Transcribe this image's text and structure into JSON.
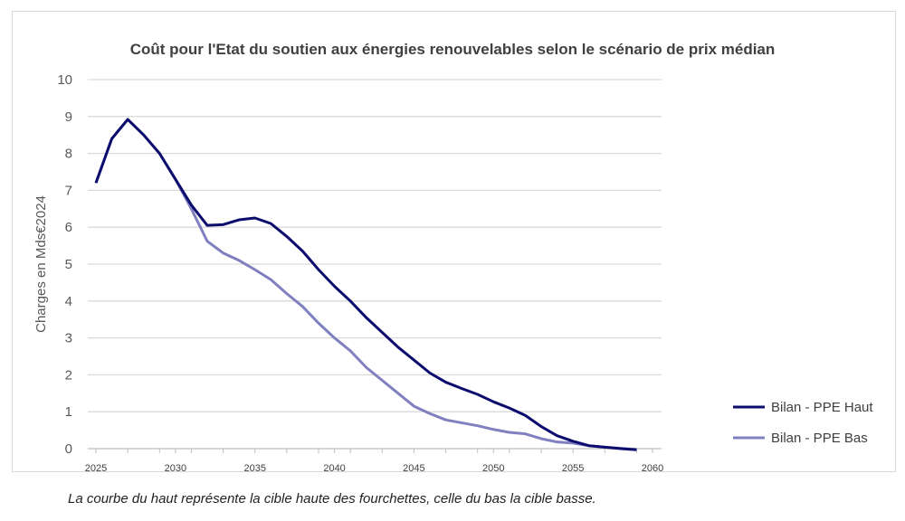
{
  "chart_data": {
    "type": "line",
    "title": "Coût pour l'Etat du soutien aux énergies renouvelables selon le scénario de prix médian",
    "xlabel": "",
    "ylabel": "Charges en Mds€2024",
    "xlim": [
      2025,
      2060
    ],
    "ylim": [
      0,
      10
    ],
    "yticks": [
      "0",
      "1",
      "2",
      "3",
      "4",
      "5",
      "6",
      "7",
      "8",
      "9",
      "10"
    ],
    "xticks": [
      "2025",
      "2030",
      "2035",
      "2040",
      "2045",
      "2050",
      "2055",
      "2060"
    ],
    "grid": true,
    "legend_position": "right",
    "x": [
      2025,
      2026,
      2027,
      2028,
      2029,
      2030,
      2031,
      2032,
      2033,
      2034,
      2035,
      2036,
      2037,
      2038,
      2039,
      2040,
      2041,
      2042,
      2043,
      2044,
      2045,
      2046,
      2047,
      2048,
      2049,
      2050,
      2051,
      2052,
      2053,
      2054,
      2055,
      2056,
      2057,
      2058,
      2059
    ],
    "series": [
      {
        "name": "Bilan - PPE Haut",
        "color": "#0c0c6e",
        "values": [
          7.2,
          8.4,
          8.92,
          8.5,
          8.0,
          7.3,
          6.6,
          6.05,
          6.07,
          6.2,
          6.25,
          6.1,
          5.75,
          5.35,
          4.85,
          4.4,
          4.0,
          3.55,
          3.15,
          2.75,
          2.4,
          2.05,
          1.8,
          1.63,
          1.47,
          1.27,
          1.1,
          0.9,
          0.6,
          0.35,
          0.2,
          0.08,
          0.04,
          0.0,
          -0.03
        ]
      },
      {
        "name": "Bilan - PPE Bas",
        "color": "#8080c0",
        "values": [
          7.2,
          8.4,
          8.92,
          8.5,
          8.0,
          7.3,
          6.5,
          5.62,
          5.3,
          5.1,
          4.85,
          4.58,
          4.2,
          3.85,
          3.4,
          3.0,
          2.65,
          2.2,
          1.85,
          1.5,
          1.15,
          0.95,
          0.78,
          0.7,
          0.62,
          0.52,
          0.44,
          0.4,
          0.27,
          0.18,
          0.15,
          0.08,
          0.04,
          0.01,
          -0.02
        ]
      }
    ]
  },
  "caption": "La courbe du haut représente la cible haute des fourchettes, celle du bas la cible basse."
}
